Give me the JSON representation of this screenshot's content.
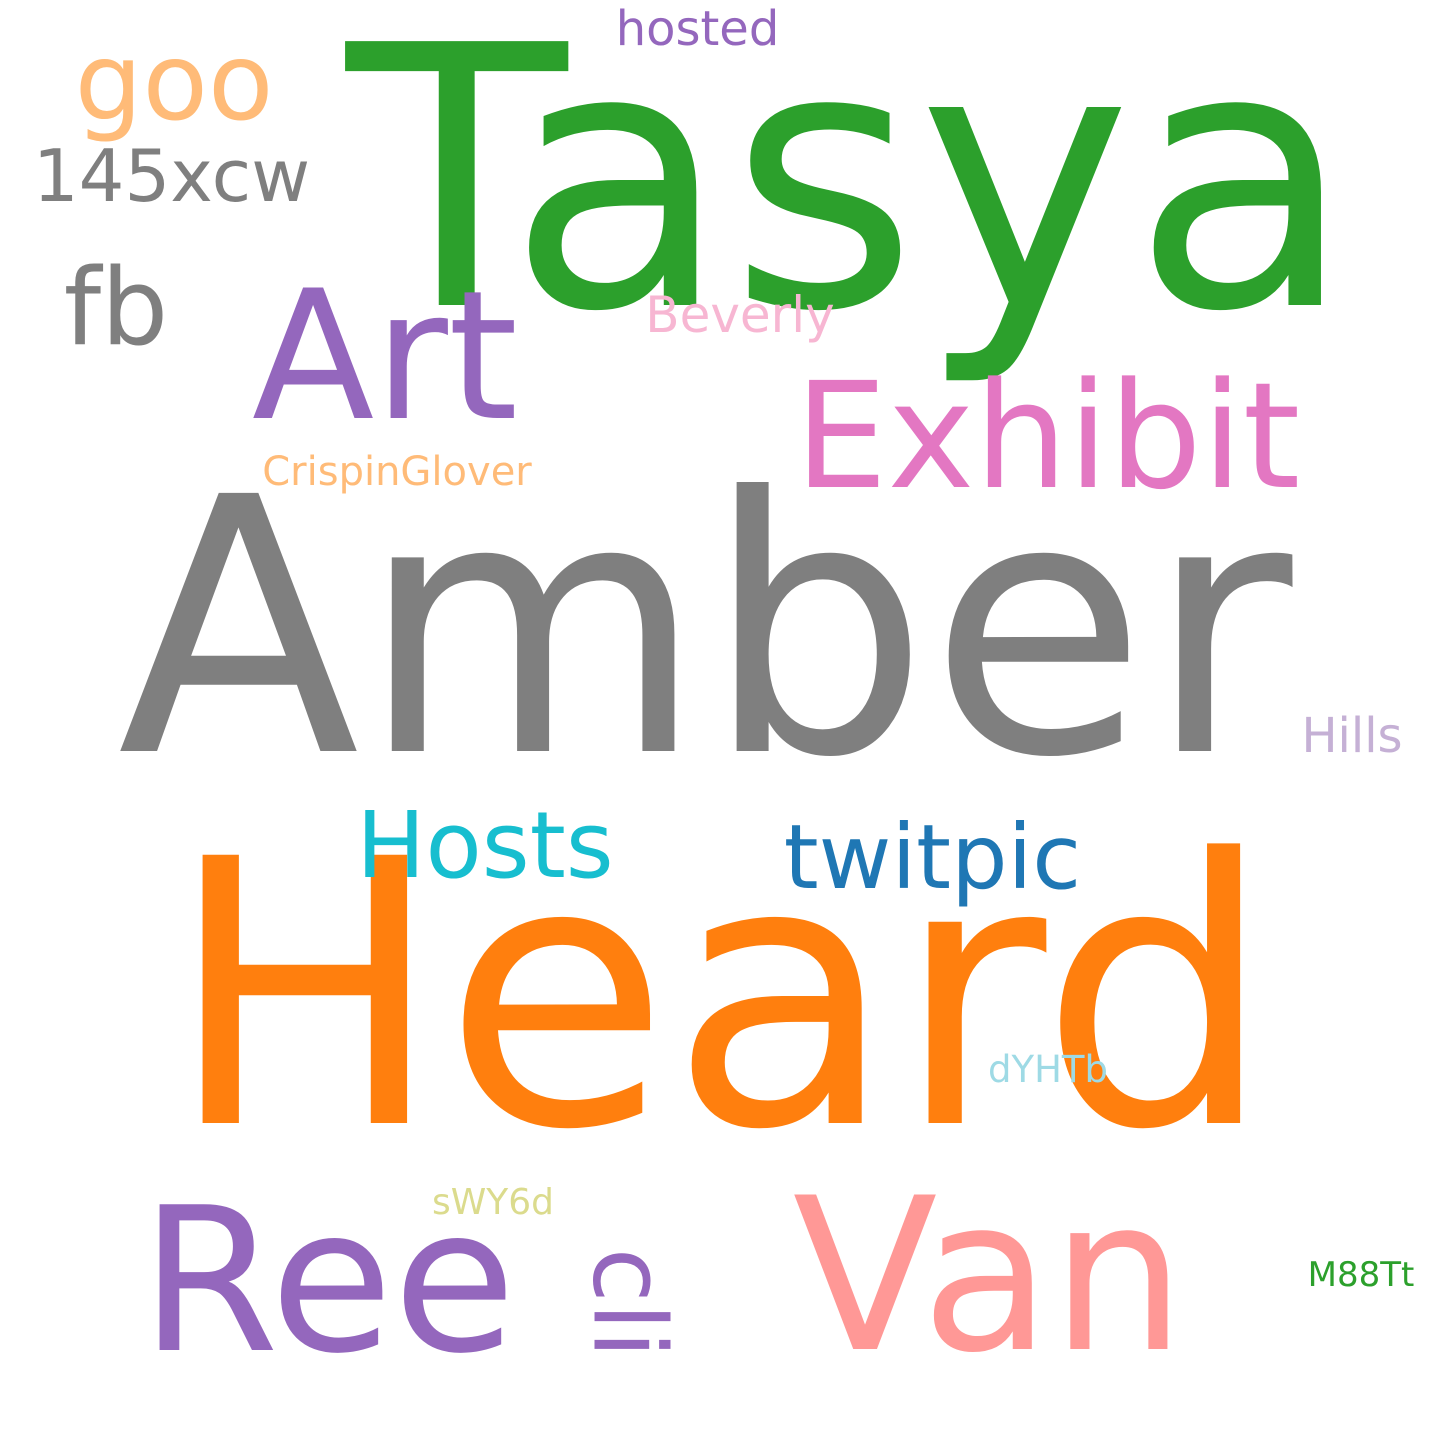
{
  "background": "#ffffff",
  "words": [
    {
      "text": "Amber",
      "color": "#7f7f7f"
    },
    {
      "text": "Heard",
      "color": "#ff7f0e"
    },
    {
      "text": "Tasya",
      "color": "#2ca02c"
    },
    {
      "text": "Van",
      "color": "#ff9896"
    },
    {
      "text": "Ree",
      "color": "#9467bd"
    },
    {
      "text": "Art",
      "color": "#9467bd"
    },
    {
      "text": "Exhibit",
      "color": "#e377c2"
    },
    {
      "text": "Hosts",
      "color": "#17becf"
    },
    {
      "text": "twitpic",
      "color": "#1f77b4"
    },
    {
      "text": "goo",
      "color": "#ffbb78"
    },
    {
      "text": "fb",
      "color": "#7f7f7f"
    },
    {
      "text": "145xcw",
      "color": "#7f7f7f"
    },
    {
      "text": "cli",
      "color": "#9467bd"
    },
    {
      "text": "CrispinGlover",
      "color": "#ffbb78"
    },
    {
      "text": "Beverly",
      "color": "#f7b6d2"
    },
    {
      "text": "hosted",
      "color": "#9467bd"
    },
    {
      "text": "Hills",
      "color": "#c5b0d5"
    },
    {
      "text": "dYHTb",
      "color": "#9edae5"
    },
    {
      "text": "sWY6d",
      "color": "#dbdb8d"
    },
    {
      "text": "M88Tt",
      "color": "#2ca02c"
    }
  ]
}
